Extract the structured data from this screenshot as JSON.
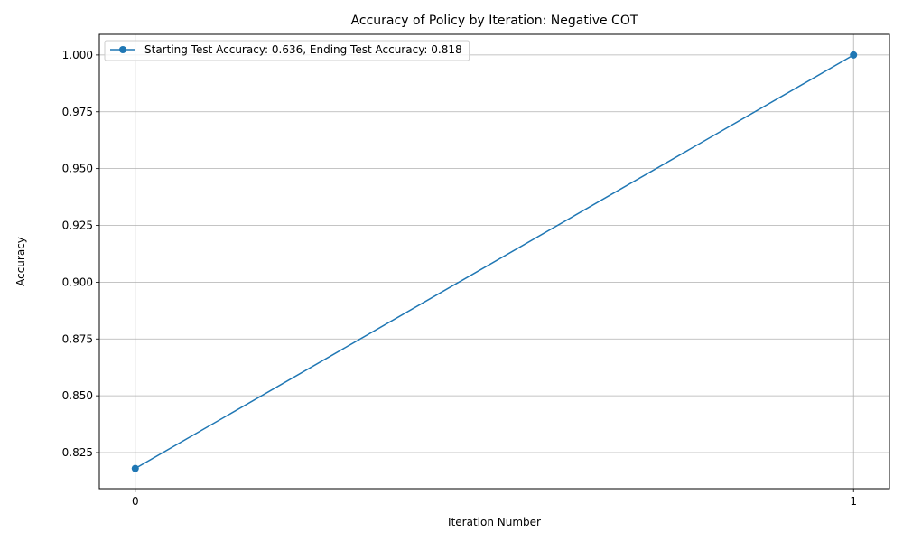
{
  "chart_data": {
    "type": "line",
    "title": "Accuracy of Policy by Iteration: Negative COT",
    "xlabel": "Iteration Number",
    "ylabel": "Accuracy",
    "x": [
      0,
      1
    ],
    "xticks": [
      "0",
      "1"
    ],
    "xlim": [
      -0.05,
      1.05
    ],
    "ylim": [
      0.8091,
      1.0091
    ],
    "yticks": [
      "0.825",
      "0.850",
      "0.875",
      "0.900",
      "0.925",
      "0.950",
      "0.975",
      "1.000"
    ],
    "series": [
      {
        "name": "Starting Test Accuracy: 0.636, Ending Test Accuracy: 0.818",
        "values": [
          0.818,
          1.0
        ],
        "color": "#1f77b4",
        "marker": "circle"
      }
    ],
    "grid": true,
    "legend_position": "upper-left"
  }
}
